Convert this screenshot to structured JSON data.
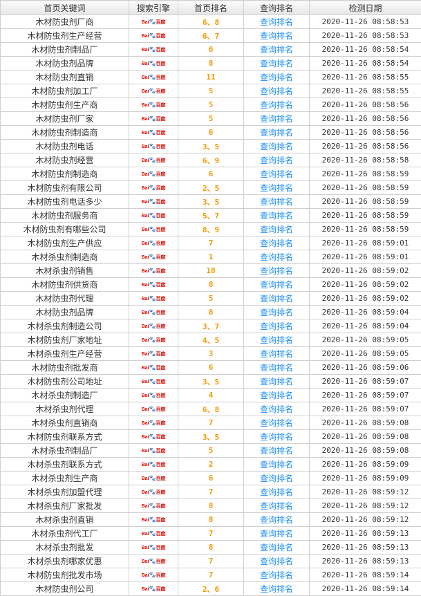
{
  "headers": [
    "首页关键词",
    "搜索引擎",
    "首页排名",
    "查询排名",
    "检测日期"
  ],
  "engine": {
    "icon": "baidu-logo-icon",
    "logo_text": "Bai百度",
    "brand_colors": [
      "#e10602",
      "#2932e1"
    ]
  },
  "query_label": "查询排名",
  "colors": {
    "rank": "#f39800",
    "link": "#1e8ef0",
    "border": "#cfcfcf"
  },
  "rows": [
    {
      "keyword": "木材防虫剂厂商",
      "rank": "6、8",
      "date": "2020-11-26 08:58:53"
    },
    {
      "keyword": "木材防虫剂生产经营",
      "rank": "6、7",
      "date": "2020-11-26 08:58:53"
    },
    {
      "keyword": "木材防虫剂制品厂",
      "rank": "6",
      "date": "2020-11-26 08:58:54"
    },
    {
      "keyword": "木材防虫剂品牌",
      "rank": "8",
      "date": "2020-11-26 08:58:54"
    },
    {
      "keyword": "木材防虫剂直销",
      "rank": "11",
      "date": "2020-11-26 08:58:55"
    },
    {
      "keyword": "木材防虫剂加工厂",
      "rank": "5",
      "date": "2020-11-26 08:58:55"
    },
    {
      "keyword": "木材防虫剂生产商",
      "rank": "5",
      "date": "2020-11-26 08:58:56"
    },
    {
      "keyword": "木材防虫剂厂家",
      "rank": "5",
      "date": "2020-11-26 08:58:56"
    },
    {
      "keyword": "木材防虫剂制造商",
      "rank": "6",
      "date": "2020-11-26 08:58:56"
    },
    {
      "keyword": "木材防虫剂电话",
      "rank": "3、5",
      "date": "2020-11-26 08:58:56"
    },
    {
      "keyword": "木材防虫剂经营",
      "rank": "6、9",
      "date": "2020-11-26 08:58:58"
    },
    {
      "keyword": "木材防虫剂制造商",
      "rank": "6",
      "date": "2020-11-26 08:58:59"
    },
    {
      "keyword": "木材防虫剂有限公司",
      "rank": "2、5",
      "date": "2020-11-26 08:58:59"
    },
    {
      "keyword": "木材防虫剂电话多少",
      "rank": "3、5",
      "date": "2020-11-26 08:58:59"
    },
    {
      "keyword": "木材防虫剂服务商",
      "rank": "5、7",
      "date": "2020-11-26 08:58:59"
    },
    {
      "keyword": "木材防虫剂有哪些公司",
      "rank": "8、9",
      "date": "2020-11-26 08:58:59"
    },
    {
      "keyword": "木材防虫剂生产供应",
      "rank": "7",
      "date": "2020-11-26 08:59:01"
    },
    {
      "keyword": "木材杀虫剂制造商",
      "rank": "1",
      "date": "2020-11-26 08:59:01"
    },
    {
      "keyword": "木材杀虫剂销售",
      "rank": "10",
      "date": "2020-11-26 08:59:02"
    },
    {
      "keyword": "木材防虫剂供货商",
      "rank": "8",
      "date": "2020-11-26 08:59:02"
    },
    {
      "keyword": "木材防虫剂代理",
      "rank": "5",
      "date": "2020-11-26 08:59:02"
    },
    {
      "keyword": "木材防虫剂品牌",
      "rank": "8",
      "date": "2020-11-26 08:59:04"
    },
    {
      "keyword": "木材杀虫剂制造公司",
      "rank": "3、7",
      "date": "2020-11-26 08:59:04"
    },
    {
      "keyword": "木材防虫剂厂家地址",
      "rank": "4、5",
      "date": "2020-11-26 08:59:05"
    },
    {
      "keyword": "木材杀虫剂生产经营",
      "rank": "3",
      "date": "2020-11-26 08:59:05"
    },
    {
      "keyword": "木材防虫剂批发商",
      "rank": "6",
      "date": "2020-11-26 08:59:06"
    },
    {
      "keyword": "木材防虫剂公司地址",
      "rank": "3、5",
      "date": "2020-11-26 08:59:07"
    },
    {
      "keyword": "木材杀虫剂制造厂",
      "rank": "4",
      "date": "2020-11-26 08:59:07"
    },
    {
      "keyword": "木材杀虫剂代理",
      "rank": "6、8",
      "date": "2020-11-26 08:59:07"
    },
    {
      "keyword": "木材杀虫剂直销商",
      "rank": "7",
      "date": "2020-11-26 08:59:08"
    },
    {
      "keyword": "木材防虫剂联系方式",
      "rank": "3、5",
      "date": "2020-11-26 08:59:08"
    },
    {
      "keyword": "木材杀虫剂制品厂",
      "rank": "5",
      "date": "2020-11-26 08:59:08"
    },
    {
      "keyword": "木材杀虫剂联系方式",
      "rank": "2",
      "date": "2020-11-26 08:59:09"
    },
    {
      "keyword": "木材杀虫剂生产商",
      "rank": "6",
      "date": "2020-11-26 08:59:09"
    },
    {
      "keyword": "木材杀虫剂加盟代理",
      "rank": "7",
      "date": "2020-11-26 08:59:12"
    },
    {
      "keyword": "木材杀虫剂厂家批发",
      "rank": "8",
      "date": "2020-11-26 08:59:12"
    },
    {
      "keyword": "木材杀虫剂直销",
      "rank": "8",
      "date": "2020-11-26 08:59:12"
    },
    {
      "keyword": "木材杀虫剂代工厂",
      "rank": "7",
      "date": "2020-11-26 08:59:13"
    },
    {
      "keyword": "木材杀虫剂批发",
      "rank": "8",
      "date": "2020-11-26 08:59:13"
    },
    {
      "keyword": "木材杀虫剂哪家优惠",
      "rank": "7",
      "date": "2020-11-26 08:59:13"
    },
    {
      "keyword": "木材防虫剂批发市场",
      "rank": "7",
      "date": "2020-11-26 08:59:14"
    },
    {
      "keyword": "木材防虫剂公司",
      "rank": "2、6",
      "date": "2020-11-26 08:59:14"
    }
  ]
}
